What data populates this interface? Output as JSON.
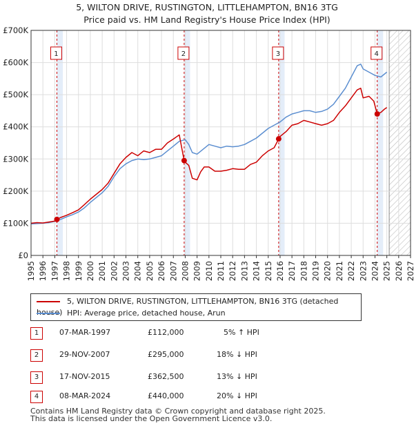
{
  "title_line1": "5, WILTON DRIVE, RUSTINGTON, LITTLEHAMPTON, BN16 3TG",
  "title_line2": "Price paid vs. HM Land Registry's House Price Index (HPI)",
  "colors": {
    "property": "#cc0000",
    "hpi": "#5b8ed0",
    "marker": "#cc0000"
  },
  "legend": {
    "property": "5, WILTON DRIVE, RUSTINGTON, LITTLEHAMPTON, BN16 3TG (detached house)",
    "hpi": "HPI: Average price, detached house, Arun"
  },
  "transactions": [
    {
      "num": "1",
      "date": "07-MAR-1997",
      "price": "£112,000",
      "hpi": "5% ↑ HPI"
    },
    {
      "num": "2",
      "date": "29-NOV-2007",
      "price": "£295,000",
      "hpi": "18% ↓ HPI"
    },
    {
      "num": "3",
      "date": "17-NOV-2015",
      "price": "£362,500",
      "hpi": "13% ↓ HPI"
    },
    {
      "num": "4",
      "date": "08-MAR-2024",
      "price": "£440,000",
      "hpi": "20% ↓ HPI"
    }
  ],
  "footer_line1": "Contains HM Land Registry data © Crown copyright and database right 2025.",
  "footer_line2": "This data is licensed under the Open Government Licence v3.0.",
  "chart_data": {
    "type": "line",
    "title": "5, WILTON DRIVE, RUSTINGTON, LITTLEHAMPTON, BN16 3TG\nPrice paid vs. HM Land Registry's House Price Index (HPI)",
    "xlim": [
      1995,
      2027
    ],
    "ylim": [
      0,
      700000
    ],
    "x_ticks": [
      "1995",
      "1996",
      "1997",
      "1998",
      "1999",
      "2000",
      "2001",
      "2002",
      "2003",
      "2004",
      "2005",
      "2006",
      "2007",
      "2008",
      "2009",
      "2010",
      "2011",
      "2012",
      "2013",
      "2014",
      "2015",
      "2016",
      "2017",
      "2018",
      "2019",
      "2020",
      "2021",
      "2022",
      "2023",
      "2024",
      "2025",
      "2026",
      "2027"
    ],
    "y_ticks": [
      {
        "value": 0,
        "label": "£0"
      },
      {
        "value": 100000,
        "label": "£100K"
      },
      {
        "value": 200000,
        "label": "£200K"
      },
      {
        "value": 300000,
        "label": "£300K"
      },
      {
        "value": 400000,
        "label": "£400K"
      },
      {
        "value": 500000,
        "label": "£500K"
      },
      {
        "value": 600000,
        "label": "£600K"
      },
      {
        "value": 700000,
        "label": "£700K"
      }
    ],
    "grid": true,
    "forecast_from": 2025.2,
    "series": [
      {
        "name": "5, WILTON DRIVE, RUSTINGTON, LITTLEHAMPTON, BN16 3TG (detached house)",
        "x": [
          1995.0,
          1995.5,
          1996.0,
          1996.5,
          1997.0,
          1997.18,
          1997.5,
          1998.0,
          1998.5,
          1999.0,
          1999.5,
          2000.0,
          2000.5,
          2001.0,
          2001.5,
          2002.0,
          2002.5,
          2003.0,
          2003.5,
          2004.0,
          2004.5,
          2005.0,
          2005.5,
          2006.0,
          2006.5,
          2007.0,
          2007.5,
          2007.91,
          2008.0,
          2008.3,
          2008.6,
          2009.0,
          2009.3,
          2009.6,
          2010.0,
          2010.5,
          2011.0,
          2011.5,
          2012.0,
          2012.5,
          2013.0,
          2013.5,
          2014.0,
          2014.5,
          2015.0,
          2015.5,
          2015.88,
          2016.0,
          2016.5,
          2017.0,
          2017.5,
          2018.0,
          2018.5,
          2019.0,
          2019.5,
          2020.0,
          2020.5,
          2021.0,
          2021.5,
          2022.0,
          2022.5,
          2022.8,
          2023.0,
          2023.5,
          2023.9,
          2024.19,
          2024.5,
          2024.8,
          2025.0
        ],
        "y": [
          100000,
          102000,
          101000,
          104000,
          107000,
          112000,
          118000,
          125000,
          133000,
          142000,
          158000,
          175000,
          190000,
          205000,
          225000,
          255000,
          285000,
          305000,
          320000,
          310000,
          325000,
          320000,
          330000,
          330000,
          350000,
          362000,
          375000,
          295000,
          290000,
          280000,
          240000,
          235000,
          260000,
          275000,
          275000,
          262000,
          262000,
          265000,
          270000,
          268000,
          268000,
          283000,
          290000,
          310000,
          325000,
          335000,
          362500,
          370000,
          385000,
          405000,
          410000,
          420000,
          415000,
          410000,
          405000,
          410000,
          420000,
          445000,
          465000,
          490000,
          515000,
          520000,
          490000,
          495000,
          480000,
          440000,
          445000,
          455000,
          460000
        ]
      },
      {
        "name": "HPI: Average price, detached house, Arun",
        "x": [
          1995.0,
          1995.5,
          1996.0,
          1996.5,
          1997.0,
          1997.5,
          1998.0,
          1998.5,
          1999.0,
          1999.5,
          2000.0,
          2000.5,
          2001.0,
          2001.5,
          2002.0,
          2002.5,
          2003.0,
          2003.5,
          2004.0,
          2004.5,
          2005.0,
          2005.5,
          2006.0,
          2006.5,
          2007.0,
          2007.5,
          2008.0,
          2008.3,
          2008.6,
          2009.0,
          2009.5,
          2010.0,
          2010.5,
          2011.0,
          2011.5,
          2012.0,
          2012.5,
          2013.0,
          2013.5,
          2014.0,
          2014.5,
          2015.0,
          2015.5,
          2016.0,
          2016.5,
          2017.0,
          2017.5,
          2018.0,
          2018.5,
          2019.0,
          2019.5,
          2020.0,
          2020.5,
          2021.0,
          2021.5,
          2022.0,
          2022.5,
          2022.8,
          2023.0,
          2023.5,
          2024.0,
          2024.5,
          2025.0
        ],
        "y": [
          98000,
          99000,
          100000,
          102000,
          106000,
          112000,
          120000,
          127000,
          135000,
          148000,
          165000,
          180000,
          195000,
          215000,
          245000,
          270000,
          285000,
          295000,
          300000,
          298000,
          300000,
          305000,
          310000,
          325000,
          340000,
          355000,
          360000,
          345000,
          320000,
          315000,
          330000,
          345000,
          340000,
          335000,
          340000,
          338000,
          340000,
          345000,
          355000,
          365000,
          380000,
          395000,
          405000,
          415000,
          430000,
          440000,
          445000,
          450000,
          450000,
          445000,
          448000,
          455000,
          470000,
          495000,
          520000,
          555000,
          590000,
          595000,
          580000,
          570000,
          560000,
          555000,
          570000
        ]
      }
    ],
    "markers": [
      {
        "label": "1",
        "x": 1997.18,
        "y": 112000
      },
      {
        "label": "2",
        "x": 2007.91,
        "y": 295000
      },
      {
        "label": "3",
        "x": 2015.88,
        "y": 362500
      },
      {
        "label": "4",
        "x": 2024.19,
        "y": 440000
      }
    ]
  }
}
